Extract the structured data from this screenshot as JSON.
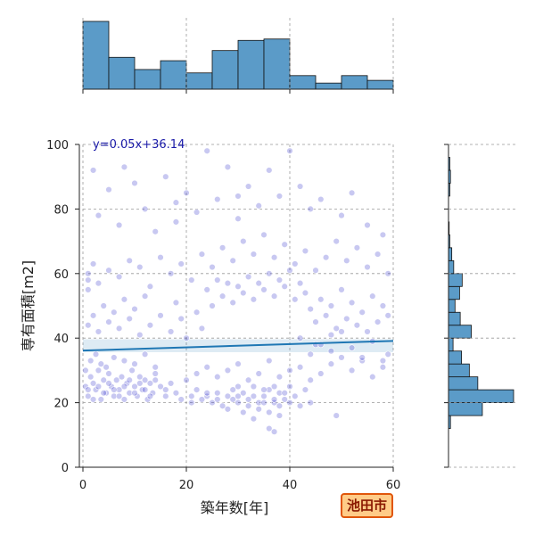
{
  "chart_data": {
    "type": "scatter",
    "xlabel": "築年数[年]",
    "ylabel": "専有面積[m2]",
    "xlim": [
      0,
      60
    ],
    "ylim": [
      0,
      100
    ],
    "x_ticks": [
      0,
      20,
      40,
      60
    ],
    "y_ticks": [
      0,
      20,
      40,
      60,
      80,
      100
    ],
    "grid": true,
    "regression": {
      "slope": 0.05,
      "intercept": 36.14,
      "label": "y=0.05x+36.14"
    },
    "point_color": "#3a3acc",
    "line_color": "#1f77b4",
    "hist_color": "#5b9bc8",
    "x_histogram": {
      "bin_edges": [
        0,
        5,
        10,
        15,
        20,
        25,
        30,
        35,
        40,
        45,
        50,
        55,
        60
      ],
      "counts": [
        100,
        47,
        29,
        42,
        24,
        57,
        72,
        74,
        20,
        9,
        20,
        13
      ]
    },
    "y_histogram": {
      "bin_edges": [
        12,
        16,
        20,
        24,
        28,
        32,
        36,
        40,
        44,
        48,
        52,
        56,
        60,
        64,
        68,
        72,
        76,
        80,
        84,
        88,
        92,
        96,
        100
      ],
      "counts": [
        3,
        52,
        100,
        45,
        32,
        20,
        7,
        35,
        18,
        10,
        17,
        21,
        8,
        5,
        2,
        1,
        0,
        0,
        2,
        3,
        2,
        0
      ]
    },
    "points": [
      [
        0.5,
        25
      ],
      [
        1,
        22
      ],
      [
        1.5,
        28
      ],
      [
        2,
        26
      ],
      [
        2.5,
        24
      ],
      [
        3,
        30
      ],
      [
        3.5,
        21
      ],
      [
        4,
        27
      ],
      [
        4.5,
        23
      ],
      [
        5,
        29
      ],
      [
        5.5,
        25
      ],
      [
        6,
        22
      ],
      [
        6.5,
        27
      ],
      [
        7,
        24
      ],
      [
        7.5,
        28
      ],
      [
        8,
        21
      ],
      [
        8.5,
        26
      ],
      [
        9,
        23
      ],
      [
        9.5,
        30
      ],
      [
        10,
        25
      ],
      [
        10.5,
        22
      ],
      [
        11,
        28
      ],
      [
        11.5,
        24
      ],
      [
        12,
        27
      ],
      [
        12.5,
        21
      ],
      [
        13,
        26
      ],
      [
        13.5,
        23
      ],
      [
        14,
        29
      ],
      [
        15,
        25
      ],
      [
        16,
        22
      ],
      [
        1,
        24
      ],
      [
        2,
        21
      ],
      [
        3,
        25
      ],
      [
        4,
        23
      ],
      [
        5,
        26
      ],
      [
        6,
        24
      ],
      [
        7,
        22
      ],
      [
        8,
        25
      ],
      [
        9,
        27
      ],
      [
        10,
        23
      ],
      [
        11,
        26
      ],
      [
        12,
        24
      ],
      [
        13,
        22
      ],
      [
        14,
        27
      ],
      [
        16,
        24
      ],
      [
        17,
        26
      ],
      [
        18,
        23
      ],
      [
        19,
        21
      ],
      [
        20,
        27
      ],
      [
        21,
        22
      ],
      [
        0.5,
        30
      ],
      [
        1.5,
        33
      ],
      [
        2.5,
        35
      ],
      [
        3.5,
        32
      ],
      [
        4.5,
        31
      ],
      [
        6,
        34
      ],
      [
        8,
        33
      ],
      [
        10,
        32
      ],
      [
        12,
        35
      ],
      [
        14,
        31
      ],
      [
        21,
        20
      ],
      [
        22,
        24
      ],
      [
        23,
        21
      ],
      [
        24,
        22
      ],
      [
        25,
        20
      ],
      [
        26,
        23
      ],
      [
        27,
        19
      ],
      [
        28,
        22
      ],
      [
        29,
        24
      ],
      [
        30,
        20
      ],
      [
        31,
        23
      ],
      [
        32,
        21
      ],
      [
        33,
        25
      ],
      [
        34,
        18
      ],
      [
        35,
        22
      ],
      [
        36,
        24
      ],
      [
        37,
        20
      ],
      [
        38,
        23
      ],
      [
        39,
        21
      ],
      [
        40,
        25
      ],
      [
        24,
        23
      ],
      [
        26,
        21
      ],
      [
        28,
        18
      ],
      [
        30,
        22
      ],
      [
        32,
        19
      ],
      [
        33,
        22
      ],
      [
        34,
        20
      ],
      [
        35,
        24
      ],
      [
        36,
        17
      ],
      [
        37,
        21
      ],
      [
        38,
        19
      ],
      [
        39,
        23
      ],
      [
        40,
        20
      ],
      [
        41,
        22
      ],
      [
        42,
        19
      ],
      [
        43,
        24
      ],
      [
        44,
        20
      ],
      [
        30,
        25
      ],
      [
        31,
        17
      ],
      [
        33,
        15
      ],
      [
        36,
        12
      ],
      [
        38,
        16
      ],
      [
        35,
        20
      ],
      [
        37,
        25
      ],
      [
        29,
        21
      ],
      [
        22,
        29
      ],
      [
        24,
        31
      ],
      [
        26,
        28
      ],
      [
        28,
        30
      ],
      [
        30,
        32
      ],
      [
        32,
        27
      ],
      [
        34,
        29
      ],
      [
        36,
        33
      ],
      [
        38,
        28
      ],
      [
        40,
        30
      ],
      [
        42,
        31
      ],
      [
        44,
        27
      ],
      [
        46,
        29
      ],
      [
        48,
        32
      ],
      [
        50,
        34
      ],
      [
        52,
        30
      ],
      [
        54,
        33
      ],
      [
        56,
        28
      ],
      [
        58,
        31
      ],
      [
        59,
        35
      ],
      [
        1,
        44
      ],
      [
        2,
        47
      ],
      [
        3,
        42
      ],
      [
        4,
        50
      ],
      [
        5,
        45
      ],
      [
        6,
        48
      ],
      [
        7,
        43
      ],
      [
        8,
        52
      ],
      [
        9,
        46
      ],
      [
        10,
        49
      ],
      [
        11,
        41
      ],
      [
        12,
        53
      ],
      [
        13,
        44
      ],
      [
        15,
        47
      ],
      [
        17,
        42
      ],
      [
        18,
        51
      ],
      [
        19,
        46
      ],
      [
        20,
        40
      ],
      [
        22,
        48
      ],
      [
        23,
        43
      ],
      [
        24,
        55
      ],
      [
        25,
        50
      ],
      [
        26,
        58
      ],
      [
        27,
        53
      ],
      [
        28,
        57
      ],
      [
        29,
        51
      ],
      [
        30,
        56
      ],
      [
        31,
        54
      ],
      [
        32,
        59
      ],
      [
        33,
        52
      ],
      [
        34,
        57
      ],
      [
        35,
        55
      ],
      [
        36,
        60
      ],
      [
        37,
        53
      ],
      [
        38,
        58
      ],
      [
        39,
        56
      ],
      [
        40,
        61
      ],
      [
        41,
        52
      ],
      [
        42,
        57
      ],
      [
        43,
        54
      ],
      [
        44,
        49
      ],
      [
        45,
        45
      ],
      [
        46,
        52
      ],
      [
        47,
        47
      ],
      [
        48,
        50
      ],
      [
        49,
        43
      ],
      [
        50,
        55
      ],
      [
        51,
        46
      ],
      [
        52,
        51
      ],
      [
        53,
        44
      ],
      [
        54,
        48
      ],
      [
        55,
        42
      ],
      [
        56,
        53
      ],
      [
        57,
        45
      ],
      [
        58,
        50
      ],
      [
        59,
        47
      ],
      [
        45,
        38
      ],
      [
        48,
        41
      ],
      [
        52,
        37
      ],
      [
        56,
        39
      ],
      [
        1,
        55
      ],
      [
        1,
        60
      ],
      [
        1,
        58
      ],
      [
        2,
        63
      ],
      [
        3,
        57
      ],
      [
        5,
        61
      ],
      [
        7,
        59
      ],
      [
        9,
        64
      ],
      [
        11,
        62
      ],
      [
        13,
        56
      ],
      [
        15,
        65
      ],
      [
        17,
        60
      ],
      [
        19,
        63
      ],
      [
        21,
        58
      ],
      [
        23,
        66
      ],
      [
        25,
        62
      ],
      [
        27,
        68
      ],
      [
        29,
        64
      ],
      [
        31,
        70
      ],
      [
        33,
        66
      ],
      [
        35,
        72
      ],
      [
        37,
        65
      ],
      [
        39,
        69
      ],
      [
        41,
        63
      ],
      [
        43,
        67
      ],
      [
        45,
        61
      ],
      [
        47,
        65
      ],
      [
        49,
        70
      ],
      [
        51,
        64
      ],
      [
        53,
        68
      ],
      [
        55,
        62
      ],
      [
        57,
        66
      ],
      [
        59,
        60
      ],
      [
        3,
        78
      ],
      [
        5,
        86
      ],
      [
        7,
        75
      ],
      [
        10,
        88
      ],
      [
        12,
        80
      ],
      [
        14,
        73
      ],
      [
        16,
        90
      ],
      [
        18,
        76
      ],
      [
        20,
        85
      ],
      [
        22,
        79
      ],
      [
        24,
        98
      ],
      [
        26,
        83
      ],
      [
        28,
        93
      ],
      [
        30,
        77
      ],
      [
        32,
        87
      ],
      [
        34,
        81
      ],
      [
        36,
        92
      ],
      [
        38,
        84
      ],
      [
        40,
        98
      ],
      [
        42,
        87
      ],
      [
        44,
        80
      ],
      [
        46,
        83
      ],
      [
        50,
        78
      ],
      [
        52,
        85
      ],
      [
        55,
        75
      ],
      [
        58,
        72
      ],
      [
        2,
        92
      ],
      [
        8,
        93
      ],
      [
        18,
        82
      ],
      [
        30,
        84
      ],
      [
        42,
        40
      ],
      [
        44,
        35
      ],
      [
        46,
        38
      ],
      [
        48,
        36
      ],
      [
        50,
        42
      ],
      [
        54,
        34
      ],
      [
        58,
        33
      ],
      [
        49,
        16
      ],
      [
        37,
        11
      ]
    ]
  }
}
